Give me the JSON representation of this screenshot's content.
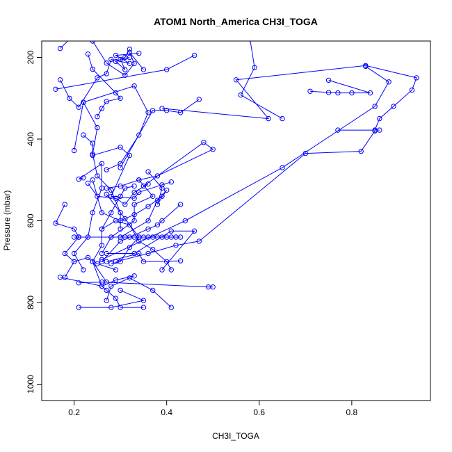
{
  "chart_data": {
    "type": "line",
    "title": "ATOM1 North_America CH3I_TOGA",
    "xlabel": "CH3I_TOGA",
    "ylabel": "Pressure (mbar)",
    "xlim": [
      0.13,
      0.97
    ],
    "ylim": [
      1040,
      160
    ],
    "y_reversed": true,
    "x_ticks": [
      0.2,
      0.4,
      0.6,
      0.8
    ],
    "x_tick_labels": [
      "0.2",
      "0.4",
      "0.6",
      "0.8"
    ],
    "y_ticks": [
      200,
      400,
      600,
      800,
      1000
    ],
    "y_tick_labels": [
      "200",
      "400",
      "600",
      "800",
      "1000"
    ],
    "grid": false,
    "legend": "none",
    "marker": "open-circle",
    "colors": {
      "series": "#0000ff",
      "frame": "#000000",
      "background": "#ffffff"
    },
    "series": [
      {
        "points": [
          [
            0.17,
            178
          ],
          [
            0.2,
            145
          ],
          [
            0.29,
            120
          ]
        ]
      },
      {
        "points": [
          [
            0.17,
            255
          ],
          [
            0.19,
            300
          ],
          [
            0.21,
            322
          ],
          [
            0.25,
            250
          ],
          [
            0.27,
            240
          ],
          [
            0.28,
            205
          ],
          [
            0.32,
            215
          ],
          [
            0.29,
            195
          ],
          [
            0.34,
            190
          ]
        ]
      },
      {
        "points": [
          [
            0.16,
            278
          ],
          [
            0.4,
            230
          ],
          [
            0.46,
            195
          ]
        ]
      },
      {
        "points": [
          [
            0.23,
            192
          ],
          [
            0.24,
            229
          ],
          [
            0.29,
            287
          ],
          [
            0.3,
            300
          ],
          [
            0.27,
            308
          ],
          [
            0.26,
            325
          ],
          [
            0.25,
            345
          ]
        ]
      },
      {
        "points": [
          [
            0.24,
            160
          ],
          [
            0.27,
            214
          ],
          [
            0.31,
            244
          ],
          [
            0.33,
            215
          ],
          [
            0.32,
            188
          ],
          [
            0.35,
            230
          ]
        ]
      },
      {
        "points": [
          [
            0.22,
            310
          ],
          [
            0.33,
            270
          ],
          [
            0.36,
            335
          ],
          [
            0.34,
            390
          ],
          [
            0.3,
            460
          ],
          [
            0.27,
            475
          ]
        ]
      },
      {
        "points": [
          [
            0.22,
            390
          ],
          [
            0.24,
            410
          ],
          [
            0.24,
            440
          ],
          [
            0.3,
            420
          ],
          [
            0.32,
            440
          ],
          [
            0.28,
            540
          ],
          [
            0.33,
            545
          ],
          [
            0.34,
            530
          ],
          [
            0.39,
            512
          ],
          [
            0.41,
            505
          ]
        ]
      },
      {
        "points": [
          [
            0.2,
            428
          ],
          [
            0.22,
            310
          ],
          [
            0.25,
            372
          ],
          [
            0.24,
            437
          ],
          [
            0.25,
            490
          ],
          [
            0.28,
            525
          ],
          [
            0.3,
            580
          ],
          [
            0.3,
            620
          ]
        ]
      },
      {
        "points": [
          [
            0.22,
            495
          ],
          [
            0.21,
            498
          ],
          [
            0.26,
            460
          ],
          [
            0.26,
            520
          ],
          [
            0.24,
            580
          ],
          [
            0.23,
            640
          ],
          [
            0.2,
            680
          ],
          [
            0.22,
            720
          ]
        ]
      },
      {
        "points": [
          [
            0.18,
            560
          ],
          [
            0.16,
            606
          ],
          [
            0.2,
            620
          ],
          [
            0.21,
            640
          ],
          [
            0.18,
            680
          ],
          [
            0.2,
            700
          ]
        ]
      },
      {
        "points": [
          [
            0.3,
            470
          ],
          [
            0.37,
            330
          ],
          [
            0.4,
            330
          ],
          [
            0.43,
            335
          ],
          [
            0.47,
            303
          ]
        ]
      },
      {
        "points": [
          [
            0.39,
            325
          ],
          [
            0.62,
            350
          ],
          [
            0.55,
            255
          ],
          [
            0.83,
            220
          ],
          [
            0.94,
            250
          ],
          [
            0.93,
            280
          ],
          [
            0.89,
            320
          ],
          [
            0.86,
            350
          ],
          [
            0.85,
            378
          ],
          [
            0.77,
            378
          ],
          [
            0.86,
            378
          ]
        ]
      },
      {
        "points": [
          [
            0.35,
            515
          ],
          [
            0.48,
            408
          ],
          [
            0.5,
            425
          ],
          [
            0.38,
            490
          ],
          [
            0.34,
            500
          ]
        ]
      },
      {
        "points": [
          [
            0.36,
            480
          ],
          [
            0.39,
            520
          ],
          [
            0.38,
            560
          ],
          [
            0.4,
            525
          ],
          [
            0.38,
            550
          ],
          [
            0.36,
            600
          ],
          [
            0.3,
            640
          ],
          [
            0.21,
            640
          ]
        ]
      },
      {
        "points": [
          [
            0.27,
            520
          ],
          [
            0.3,
            515
          ],
          [
            0.34,
            500
          ],
          [
            0.37,
            540
          ],
          [
            0.33,
            560
          ],
          [
            0.33,
            600
          ],
          [
            0.28,
            640
          ],
          [
            0.26,
            680
          ]
        ]
      },
      {
        "points": [
          [
            0.21,
            640
          ],
          [
            0.2,
            640
          ],
          [
            0.3,
            640
          ],
          [
            0.31,
            640
          ],
          [
            0.32,
            640
          ],
          [
            0.33,
            640
          ],
          [
            0.34,
            640
          ],
          [
            0.35,
            640
          ],
          [
            0.36,
            640
          ],
          [
            0.37,
            640
          ],
          [
            0.38,
            640
          ],
          [
            0.39,
            640
          ],
          [
            0.4,
            640
          ],
          [
            0.41,
            640
          ],
          [
            0.42,
            640
          ],
          [
            0.43,
            640
          ]
        ]
      },
      {
        "points": [
          [
            0.26,
            620
          ],
          [
            0.29,
            600
          ],
          [
            0.32,
            610
          ],
          [
            0.34,
            650
          ],
          [
            0.37,
            670
          ],
          [
            0.4,
            700
          ],
          [
            0.41,
            720
          ]
        ]
      },
      {
        "points": [
          [
            0.27,
            700
          ],
          [
            0.34,
            680
          ],
          [
            0.35,
            700
          ],
          [
            0.43,
            698
          ]
        ]
      },
      {
        "points": [
          [
            0.24,
            700
          ],
          [
            0.26,
            760
          ],
          [
            0.27,
            770
          ],
          [
            0.29,
            790
          ],
          [
            0.3,
            812
          ],
          [
            0.35,
            812
          ]
        ]
      },
      {
        "points": [
          [
            0.21,
            812
          ],
          [
            0.28,
            812
          ],
          [
            0.35,
            795
          ],
          [
            0.3,
            770
          ]
        ]
      },
      {
        "points": [
          [
            0.27,
            795
          ],
          [
            0.28,
            760
          ],
          [
            0.32,
            740
          ],
          [
            0.37,
            770
          ],
          [
            0.41,
            812
          ]
        ]
      },
      {
        "points": [
          [
            0.21,
            752
          ],
          [
            0.26,
            750
          ],
          [
            0.49,
            762
          ],
          [
            0.5,
            762
          ]
        ]
      },
      {
        "points": [
          [
            0.17,
            738
          ],
          [
            0.26,
            760
          ],
          [
            0.29,
            745
          ],
          [
            0.33,
            735
          ]
        ]
      },
      {
        "points": [
          [
            0.18,
            738
          ],
          [
            0.2,
            700
          ],
          [
            0.23,
            690
          ],
          [
            0.25,
            705
          ],
          [
            0.29,
            720
          ]
        ]
      },
      {
        "points": [
          [
            0.27,
            750
          ],
          [
            0.24,
            700
          ],
          [
            0.26,
            660
          ],
          [
            0.26,
            620
          ],
          [
            0.28,
            580
          ],
          [
            0.3,
            540
          ],
          [
            0.31,
            520
          ],
          [
            0.33,
            515
          ]
        ]
      },
      {
        "points": [
          [
            0.26,
            700
          ],
          [
            0.3,
            650
          ],
          [
            0.36,
            620
          ],
          [
            0.38,
            610
          ],
          [
            0.39,
            600
          ],
          [
            0.43,
            560
          ]
        ]
      },
      {
        "points": [
          [
            0.27,
            680
          ],
          [
            0.33,
            680
          ],
          [
            0.41,
            625
          ],
          [
            0.46,
            625
          ],
          [
            0.39,
            720
          ]
        ]
      },
      {
        "points": [
          [
            0.29,
            700
          ],
          [
            0.36,
            680
          ],
          [
            0.42,
            660
          ],
          [
            0.47,
            650
          ],
          [
            0.7,
            435
          ],
          [
            0.82,
            430
          ],
          [
            0.85,
            380
          ]
        ]
      },
      {
        "points": [
          [
            0.26,
            695
          ],
          [
            0.44,
            600
          ],
          [
            0.65,
            470
          ],
          [
            0.85,
            320
          ],
          [
            0.88,
            260
          ],
          [
            0.83,
            222
          ]
        ]
      },
      {
        "points": [
          [
            0.58,
            155
          ],
          [
            0.59,
            225
          ],
          [
            0.56,
            292
          ],
          [
            0.65,
            350
          ]
        ]
      },
      {
        "points": [
          [
            0.71,
            283
          ],
          [
            0.75,
            286
          ],
          [
            0.77,
            287
          ],
          [
            0.8,
            287
          ],
          [
            0.84,
            287
          ],
          [
            0.75,
            256
          ]
        ]
      },
      {
        "points": [
          [
            0.32,
            200
          ],
          [
            0.3,
            205
          ],
          [
            0.31,
            230
          ],
          [
            0.29,
            210
          ],
          [
            0.31,
            200
          ],
          [
            0.32,
            180
          ]
        ]
      },
      {
        "points": [
          [
            0.23,
            508
          ],
          [
            0.25,
            540
          ],
          [
            0.29,
            545
          ],
          [
            0.31,
            560
          ],
          [
            0.33,
            530
          ],
          [
            0.36,
            510
          ]
        ]
      },
      {
        "points": [
          [
            0.27,
            535
          ],
          [
            0.31,
            595
          ],
          [
            0.34,
            640
          ],
          [
            0.32,
            665
          ],
          [
            0.3,
            700
          ],
          [
            0.28,
            705
          ]
        ]
      },
      {
        "points": [
          [
            0.24,
            500
          ],
          [
            0.26,
            580
          ],
          [
            0.3,
            600
          ],
          [
            0.33,
            585
          ],
          [
            0.36,
            565
          ],
          [
            0.39,
            540
          ]
        ]
      }
    ]
  }
}
